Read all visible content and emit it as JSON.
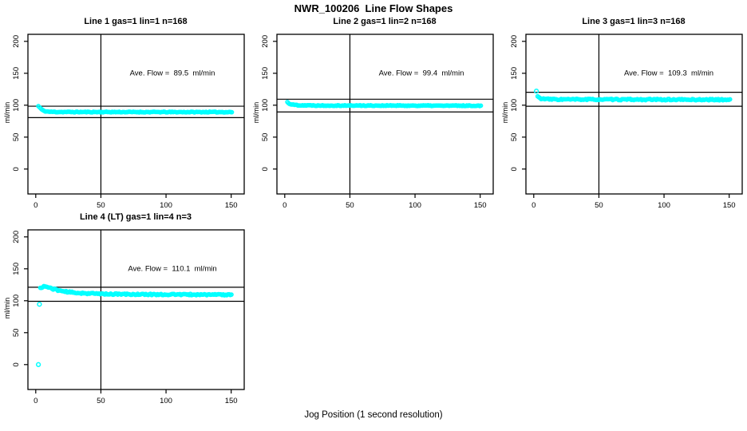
{
  "figure": {
    "title": "NWR_100206  Line Flow Shapes",
    "xlabel": "Jog Position (1 second resolution)",
    "ylabel": "ml/min",
    "background": "#ffffff",
    "point_color": "#00ffff",
    "line_color": "#000000"
  },
  "chart_data": [
    {
      "type": "scatter",
      "title": "Line 1 gas=1 lin=1 n=168",
      "n": 168,
      "ave_flow": 89.5,
      "annotation": "Ave. Flow =  89.5  ml/min",
      "ylabel": "ml/min",
      "xlim": [
        -6,
        160
      ],
      "ylim": [
        -39,
        211
      ],
      "x_ticks": [
        0,
        50,
        100,
        150
      ],
      "y_ticks": [
        0,
        50,
        100,
        150,
        200
      ],
      "vline_x": 50,
      "hlines": [
        98.45,
        80.55
      ],
      "curve": [
        [
          2,
          98.5
        ],
        [
          3,
          96.5
        ],
        [
          4,
          94.5
        ],
        [
          5,
          92.5
        ],
        [
          6,
          91.2
        ],
        [
          8,
          90.2
        ],
        [
          11,
          89.7
        ],
        [
          16,
          89.4
        ],
        [
          40,
          89.3
        ],
        [
          151,
          89.2
        ]
      ],
      "outliers": [],
      "jitter": 0.6,
      "seed": 11
    },
    {
      "type": "scatter",
      "title": "Line 2 gas=1 lin=2 n=168",
      "n": 168,
      "ave_flow": 99.4,
      "annotation": "Ave. Flow =  99.4  ml/min",
      "ylabel": "ml/min",
      "xlim": [
        -6,
        160
      ],
      "ylim": [
        -39,
        211
      ],
      "x_ticks": [
        0,
        50,
        100,
        150
      ],
      "y_ticks": [
        0,
        50,
        100,
        150,
        200
      ],
      "vline_x": 50,
      "hlines": [
        109.34,
        89.46
      ],
      "curve": [
        [
          2,
          104.8
        ],
        [
          3,
          103.2
        ],
        [
          4,
          102
        ],
        [
          6,
          100.9
        ],
        [
          9,
          100.2
        ],
        [
          14,
          99.8
        ],
        [
          30,
          99.5
        ],
        [
          151,
          99.2
        ]
      ],
      "outliers": [],
      "jitter": 0.6,
      "seed": 22
    },
    {
      "type": "scatter",
      "title": "Line 3 gas=1 lin=3 n=168",
      "n": 168,
      "ave_flow": 109.3,
      "annotation": "Ave. Flow =  109.3  ml/min",
      "ylabel": "ml/min",
      "xlim": [
        -6,
        160
      ],
      "ylim": [
        -39,
        211
      ],
      "x_ticks": [
        0,
        50,
        100,
        150
      ],
      "y_ticks": [
        0,
        50,
        100,
        150,
        200
      ],
      "vline_x": 50,
      "hlines": [
        120.23,
        98.37
      ],
      "curve": [
        [
          3,
          113.8
        ],
        [
          4,
          111.8
        ],
        [
          5,
          110.8
        ],
        [
          7,
          110
        ],
        [
          11,
          109.4
        ],
        [
          20,
          109.1
        ],
        [
          60,
          108.9
        ],
        [
          151,
          108.6
        ]
      ],
      "outliers": [
        [
          2,
          122
        ]
      ],
      "jitter": 1.0,
      "seed": 33
    },
    {
      "type": "scatter",
      "title": "Line 4 (LT) gas=1 lin=4 n=3",
      "n": 3,
      "ave_flow": 110.1,
      "annotation": "Ave. Flow =  110.1  ml/min",
      "ylabel": "ml/min",
      "xlim": [
        -6,
        160
      ],
      "ylim": [
        -39,
        211
      ],
      "x_ticks": [
        0,
        50,
        100,
        150
      ],
      "y_ticks": [
        0,
        50,
        100,
        150,
        200
      ],
      "vline_x": 50,
      "hlines": [
        121.11,
        99.09
      ],
      "curve": [
        [
          3.5,
          119.5
        ],
        [
          5,
          121.8
        ],
        [
          6,
          122.3
        ],
        [
          8,
          122
        ],
        [
          10,
          120.8
        ],
        [
          13,
          118.8
        ],
        [
          16,
          117
        ],
        [
          20,
          115.2
        ],
        [
          25,
          113.6
        ],
        [
          30,
          112.6
        ],
        [
          40,
          111.5
        ],
        [
          50,
          110.8
        ],
        [
          65,
          110.2
        ],
        [
          85,
          109.9
        ],
        [
          110,
          109.7
        ],
        [
          151,
          109.4
        ]
      ],
      "outliers": [
        [
          2,
          0
        ],
        [
          2.8,
          94.5
        ]
      ],
      "jitter": 1.1,
      "seed": 44
    }
  ]
}
